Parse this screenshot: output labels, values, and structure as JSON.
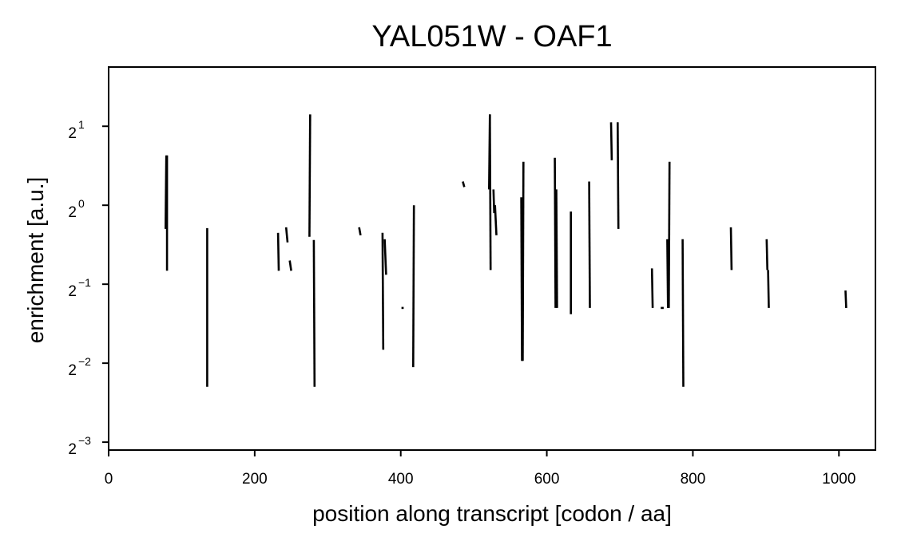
{
  "chart_data": {
    "type": "line",
    "title": "YAL051W - OAF1",
    "xlabel": "position along transcript [codon / aa]",
    "ylabel": "enrichment [a.u.]",
    "xlim": [
      0,
      1050
    ],
    "ylim_log2": [
      -3.1,
      1.75
    ],
    "y_scale": "log2",
    "x_ticks": [
      0,
      200,
      400,
      600,
      800,
      1000
    ],
    "x_tick_labels": [
      "0",
      "200",
      "400",
      "600",
      "800",
      "1000"
    ],
    "y_ticks_log2": [
      1,
      0,
      -1,
      -2,
      -3
    ],
    "y_tick_labels": [
      {
        "base": "2",
        "exp": "1"
      },
      {
        "base": "2",
        "exp": "0"
      },
      {
        "base": "2",
        "exp": "−1"
      },
      {
        "base": "2",
        "exp": "−2"
      },
      {
        "base": "2",
        "exp": "−3"
      }
    ],
    "grid": false,
    "series": [
      {
        "color": "#000000",
        "segments_log2": [
          [
            [
              78,
              -0.3
            ],
            [
              79,
              0.63
            ]
          ],
          [
            [
              80,
              0.63
            ],
            [
              80,
              -0.83
            ]
          ],
          [
            [
              135,
              -0.29
            ],
            [
              135,
              -2.3
            ]
          ],
          [
            [
              232,
              -0.35
            ],
            [
              233,
              -0.83
            ]
          ],
          [
            [
              243,
              -0.28
            ],
            [
              245,
              -0.47
            ]
          ],
          [
            [
              248,
              -0.7
            ],
            [
              250,
              -0.83
            ]
          ],
          [
            [
              275,
              -0.4
            ],
            [
              276,
              1.15
            ]
          ],
          [
            [
              281,
              -0.44
            ],
            [
              282,
              -2.3
            ]
          ],
          [
            [
              343,
              -0.28
            ],
            [
              345,
              -0.38
            ]
          ],
          [
            [
              375,
              -0.35
            ],
            [
              376,
              -1.83
            ]
          ],
          [
            [
              378,
              -0.43
            ],
            [
              380,
              -0.88
            ]
          ],
          [
            [
              401,
              -1.3
            ],
            [
              404,
              -1.3
            ]
          ],
          [
            [
              418,
              0.0
            ],
            [
              417,
              -2.05
            ]
          ],
          [
            [
              485,
              0.3
            ],
            [
              487,
              0.23
            ]
          ],
          [
            [
              521,
              0.2
            ],
            [
              522,
              1.15
            ]
          ],
          [
            [
              522,
              1.15
            ],
            [
              523,
              -0.82
            ]
          ],
          [
            [
              527,
              0.2
            ],
            [
              528,
              -0.1
            ]
          ],
          [
            [
              529,
              0.0
            ],
            [
              531,
              -0.38
            ]
          ],
          [
            [
              565,
              0.1
            ],
            [
              566,
              -1.97
            ]
          ],
          [
            [
              567,
              -1.97
            ],
            [
              568,
              0.55
            ]
          ],
          [
            [
              611,
              0.6
            ],
            [
              612,
              -1.3
            ]
          ],
          [
            [
              613,
              0.2
            ],
            [
              614,
              -1.3
            ]
          ],
          [
            [
              633,
              -0.08
            ],
            [
              633,
              -1.38
            ]
          ],
          [
            [
              658,
              0.3
            ],
            [
              659,
              -1.3
            ]
          ],
          [
            [
              688,
              1.05
            ],
            [
              689,
              0.57
            ]
          ],
          [
            [
              697,
              1.05
            ],
            [
              698,
              -0.3
            ]
          ],
          [
            [
              744,
              -0.8
            ],
            [
              745,
              -1.3
            ]
          ],
          [
            [
              756,
              -1.3
            ],
            [
              760,
              -1.3
            ]
          ],
          [
            [
              765,
              -0.43
            ],
            [
              766,
              -1.3
            ]
          ],
          [
            [
              767,
              -1.3
            ],
            [
              768,
              0.55
            ]
          ],
          [
            [
              786,
              -0.43
            ],
            [
              787,
              -2.3
            ]
          ],
          [
            [
              852,
              -0.28
            ],
            [
              853,
              -0.82
            ]
          ],
          [
            [
              901,
              -0.43
            ],
            [
              902,
              -0.82
            ]
          ],
          [
            [
              903,
              -0.82
            ],
            [
              904,
              -1.3
            ]
          ],
          [
            [
              1009,
              -1.08
            ],
            [
              1010,
              -1.3
            ]
          ]
        ]
      }
    ]
  }
}
